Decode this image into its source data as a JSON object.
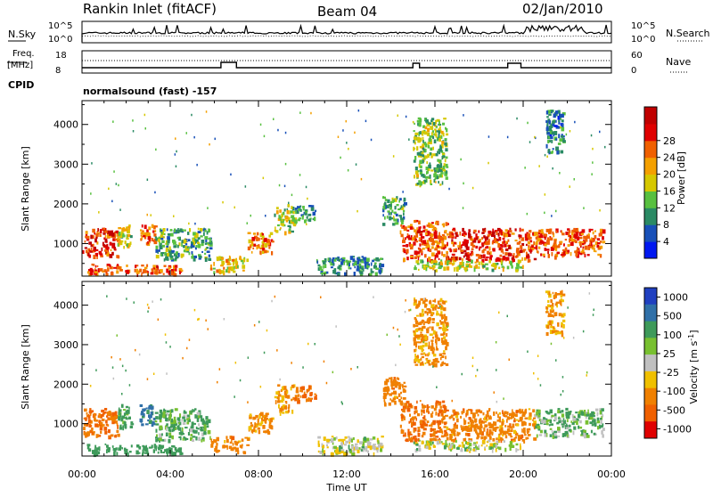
{
  "header": {
    "station": "Rankin Inlet (fitACF)",
    "beam": "Beam 04",
    "date": "02/Jan/2010"
  },
  "sky_panel": {
    "left_label": "N.Sky",
    "left_ticks": [
      "10^5",
      "10^0"
    ],
    "right_ticks": [
      "10^5",
      "10^0"
    ],
    "right_label": "N.Search"
  },
  "freq_panel": {
    "left_label_line1": "Freq.",
    "left_label_line2": "[MHz]",
    "left_ticks": [
      "18",
      "8"
    ],
    "right_ticks": [
      "60",
      "0"
    ],
    "right_label": "Nave",
    "cpid_label": "CPID",
    "program": "normalsound (fast) -157"
  },
  "chart_data": [
    {
      "type": "heatmap",
      "panel": "power",
      "xlabel": "Time UT",
      "ylabel": "Slant Range [km]",
      "x_ticks": [
        "00:00",
        "04:00",
        "08:00",
        "12:00",
        "16:00",
        "20:00",
        "00:00"
      ],
      "xlim_hours": [
        0,
        24
      ],
      "y_ticks": [
        1000,
        2000,
        3000,
        4000
      ],
      "ylim": [
        180,
        4600
      ],
      "colorbar": {
        "label": "Power [dB]",
        "ticks": [
          "4",
          "8",
          "12",
          "16",
          "20",
          "24",
          "28"
        ],
        "range": [
          0,
          30
        ],
        "colors": [
          "#0018f0",
          "#1850b8",
          "#2a8a64",
          "#58c040",
          "#d6c800",
          "#f4a000",
          "#f06000",
          "#e00000",
          "#c00000"
        ]
      },
      "echo_regions": [
        {
          "t": [
            0.0,
            1.6
          ],
          "r": [
            700,
            1400
          ],
          "level": 24
        },
        {
          "t": [
            1.6,
            2.2
          ],
          "r": [
            900,
            1500
          ],
          "level": 14
        },
        {
          "t": [
            0.2,
            4.5
          ],
          "r": [
            250,
            500
          ],
          "level": 22
        },
        {
          "t": [
            2.6,
            3.3
          ],
          "r": [
            1000,
            1500
          ],
          "level": 22
        },
        {
          "t": [
            3.3,
            5.8
          ],
          "r": [
            600,
            1400
          ],
          "level": 10
        },
        {
          "t": [
            5.8,
            7.5
          ],
          "r": [
            300,
            700
          ],
          "level": 16
        },
        {
          "t": [
            7.5,
            8.6
          ],
          "r": [
            800,
            1300
          ],
          "level": 20
        },
        {
          "t": [
            8.7,
            9.6
          ],
          "r": [
            1300,
            2000
          ],
          "level": 14
        },
        {
          "t": [
            9.6,
            10.6
          ],
          "r": [
            1600,
            2000
          ],
          "level": 8
        },
        {
          "t": [
            10.6,
            13.6
          ],
          "r": [
            250,
            700
          ],
          "level": 8
        },
        {
          "t": [
            13.6,
            14.6
          ],
          "r": [
            1500,
            2200
          ],
          "level": 10
        },
        {
          "t": [
            14.4,
            16.5
          ],
          "r": [
            600,
            1600
          ],
          "level": 22
        },
        {
          "t": [
            16.5,
            20.5
          ],
          "r": [
            600,
            1400
          ],
          "level": 24
        },
        {
          "t": [
            20.5,
            23.6
          ],
          "r": [
            700,
            1400
          ],
          "level": 22
        },
        {
          "t": [
            15.0,
            20.0
          ],
          "r": [
            350,
            600
          ],
          "level": 14
        },
        {
          "t": [
            15.0,
            16.5
          ],
          "r": [
            2500,
            4200
          ],
          "level": 12
        },
        {
          "t": [
            21.0,
            21.8
          ],
          "r": [
            3300,
            4400
          ],
          "level": 8
        }
      ]
    },
    {
      "type": "heatmap",
      "panel": "velocity",
      "xlabel": "Time UT",
      "ylabel": "Slant Range [km]",
      "x_ticks": [
        "00:00",
        "04:00",
        "08:00",
        "12:00",
        "16:00",
        "20:00",
        "00:00"
      ],
      "xlim_hours": [
        0,
        24
      ],
      "y_ticks": [
        1000,
        2000,
        3000,
        4000
      ],
      "ylim": [
        180,
        4600
      ],
      "colorbar": {
        "label": "Velocity [m s^-1]",
        "unit_main": "Velocity [m s",
        "unit_exp": "-1",
        "unit_close": "]",
        "ticks": [
          "1000",
          "500",
          "100",
          "25",
          "-25",
          "-100",
          "-500",
          "-1000"
        ],
        "colors": [
          "#2040c0",
          "#3070a8",
          "#3e9a5a",
          "#78c030",
          "#c0c0c0",
          "#f0c000",
          "#f08000",
          "#f06000",
          "#e00000"
        ]
      },
      "echo_regions": [
        {
          "t": [
            0.0,
            1.6
          ],
          "r": [
            700,
            1400
          ],
          "level": -300
        },
        {
          "t": [
            1.6,
            2.2
          ],
          "r": [
            900,
            1500
          ],
          "level": 100
        },
        {
          "t": [
            0.2,
            4.5
          ],
          "r": [
            250,
            500
          ],
          "level": 150
        },
        {
          "t": [
            2.6,
            3.3
          ],
          "r": [
            1000,
            1500
          ],
          "level": 400
        },
        {
          "t": [
            3.3,
            5.8
          ],
          "r": [
            600,
            1400
          ],
          "level": 80
        },
        {
          "t": [
            5.8,
            7.5
          ],
          "r": [
            300,
            700
          ],
          "level": -200
        },
        {
          "t": [
            7.5,
            8.6
          ],
          "r": [
            800,
            1300
          ],
          "level": -150
        },
        {
          "t": [
            8.7,
            9.6
          ],
          "r": [
            1300,
            2000
          ],
          "level": -100
        },
        {
          "t": [
            9.6,
            10.6
          ],
          "r": [
            1600,
            2000
          ],
          "level": -300
        },
        {
          "t": [
            10.6,
            13.6
          ],
          "r": [
            250,
            700
          ],
          "level": 0
        },
        {
          "t": [
            13.6,
            14.6
          ],
          "r": [
            1500,
            2200
          ],
          "level": -200
        },
        {
          "t": [
            14.4,
            16.5
          ],
          "r": [
            600,
            1600
          ],
          "level": -300
        },
        {
          "t": [
            16.5,
            20.5
          ],
          "r": [
            600,
            1400
          ],
          "level": -200
        },
        {
          "t": [
            20.5,
            23.6
          ],
          "r": [
            700,
            1400
          ],
          "level": 60
        },
        {
          "t": [
            15.0,
            20.0
          ],
          "r": [
            350,
            600
          ],
          "level": 0
        },
        {
          "t": [
            15.0,
            16.5
          ],
          "r": [
            2500,
            4200
          ],
          "level": -150
        },
        {
          "t": [
            21.0,
            21.8
          ],
          "r": [
            3300,
            4400
          ],
          "level": -120
        }
      ]
    }
  ]
}
